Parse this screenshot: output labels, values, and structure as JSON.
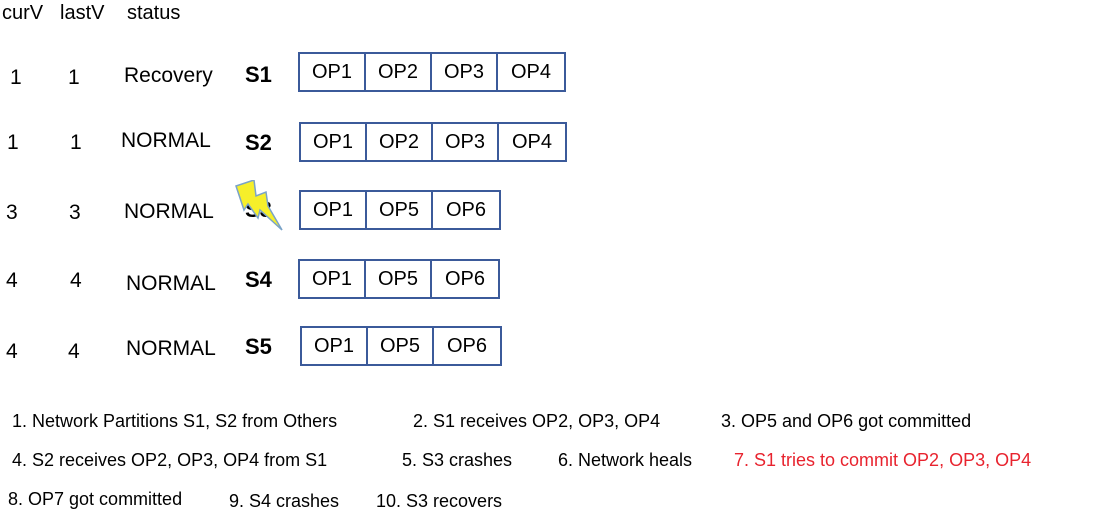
{
  "headers": {
    "cur": "curV",
    "last": "lastV",
    "status": "status"
  },
  "servers": [
    {
      "name": "S1",
      "curV": "1",
      "lastV": "1",
      "status": "Recovery",
      "ops": [
        "OP1",
        "OP2",
        "OP3",
        "OP4"
      ]
    },
    {
      "name": "S2",
      "curV": "1",
      "lastV": "1",
      "status": "NORMAL",
      "ops": [
        "OP1",
        "OP2",
        "OP3",
        "OP4"
      ]
    },
    {
      "name": "S3",
      "curV": "3",
      "lastV": "3",
      "status": "NORMAL",
      "ops": [
        "OP1",
        "OP5",
        "OP6"
      ]
    },
    {
      "name": "S4",
      "curV": "4",
      "lastV": "4",
      "status": "NORMAL",
      "ops": [
        "OP1",
        "OP5",
        "OP6"
      ]
    },
    {
      "name": "S5",
      "curV": "4",
      "lastV": "4",
      "status": "NORMAL",
      "ops": [
        "OP1",
        "OP5",
        "OP6"
      ]
    }
  ],
  "crash_icon": "lightning-bolt-icon",
  "colors": {
    "box_border": "#3b5a9a",
    "highlight": "#e8232e",
    "bolt_fill": "#f6ef2a"
  },
  "notes": [
    "1. Network Partitions S1, S2 from Others",
    "2. S1 receives OP2, OP3, OP4",
    "3. OP5 and OP6 got committed",
    "4. S2 receives OP2, OP3, OP4 from S1",
    "5. S3 crashes",
    "6. Network heals",
    "7. S1 tries to commit OP2, OP3, OP4",
    "8. OP7 got committed",
    "9. S4 crashes",
    "10. S3 recovers"
  ]
}
